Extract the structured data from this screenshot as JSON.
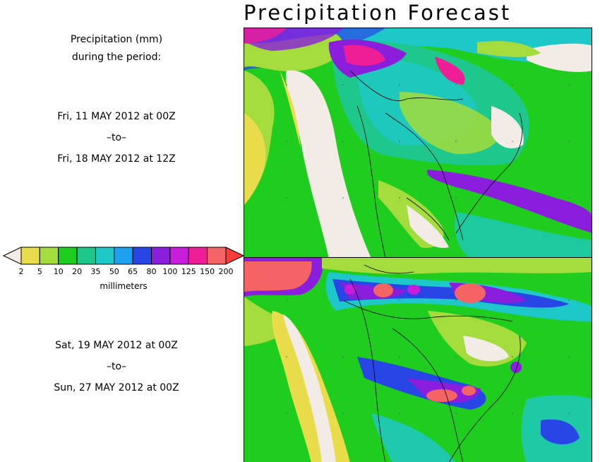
{
  "title": "Precipitation Forecast",
  "legend_heading": [
    "Precipitation (mm)",
    "during the period:"
  ],
  "period_1": {
    "start": "Fri, 11 MAY 2012 at 00Z",
    "separator": "–to–",
    "end": "Fri, 18 MAY 2012 at 12Z"
  },
  "period_2": {
    "start": "Sat, 19 MAY 2012 at 00Z",
    "separator": "–to–",
    "end": "Sun, 27 MAY 2012 at 00Z"
  },
  "colorbar": {
    "units": "millimeters",
    "labels": [
      "2",
      "5",
      "10",
      "20",
      "35",
      "50",
      "65",
      "80",
      "100",
      "125",
      "150",
      "200"
    ],
    "colors": [
      "#f2ebe6",
      "#e8dc4a",
      "#a3dc3c",
      "#1ecd1e",
      "#1ec88c",
      "#1ec8c8",
      "#1ea0f0",
      "#2846e6",
      "#8a1edc",
      "#c81edc",
      "#f01e96",
      "#f56464",
      "#fa3c3c"
    ]
  },
  "map_colors": {
    "ocean_base": "#1ecd1e",
    "dry": "#f2ebe6",
    "light": "#e8dc4a",
    "lightgreen": "#a3dc3c",
    "teal": "#1ec88c",
    "cyan": "#1ec8c8",
    "blue": "#1ea0f0",
    "deepblue": "#2846e6",
    "purple": "#8a1edc",
    "magenta": "#c81edc",
    "pink": "#f01e96",
    "red": "#f56464"
  }
}
